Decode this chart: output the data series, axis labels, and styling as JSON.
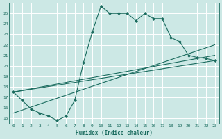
{
  "xlabel": "Humidex (Indice chaleur)",
  "ylabel": "",
  "bg_color": "#cce8e5",
  "line_color": "#1a6b5e",
  "marker_color": "#1a6b5e",
  "xlim": [
    -0.5,
    23.5
  ],
  "ylim": [
    14.5,
    26.0
  ],
  "xticks": [
    0,
    1,
    2,
    3,
    4,
    5,
    6,
    7,
    8,
    9,
    10,
    11,
    12,
    13,
    14,
    15,
    16,
    17,
    18,
    19,
    20,
    21,
    22,
    23
  ],
  "yticks": [
    15,
    16,
    17,
    18,
    19,
    20,
    21,
    22,
    23,
    24,
    25
  ],
  "lines": [
    {
      "x": [
        0,
        1,
        2,
        3,
        4,
        5,
        6,
        7,
        8,
        9,
        10,
        11,
        12,
        13,
        14,
        15,
        16,
        17,
        18,
        19,
        20,
        21,
        22,
        23
      ],
      "y": [
        17.5,
        16.7,
        15.9,
        15.5,
        15.2,
        14.8,
        15.2,
        16.7,
        20.3,
        23.2,
        25.7,
        25.0,
        25.0,
        25.0,
        24.3,
        25.0,
        24.5,
        24.5,
        22.7,
        22.3,
        21.0,
        20.8,
        20.7,
        20.5
      ],
      "has_markers": true
    },
    {
      "x": [
        0,
        23
      ],
      "y": [
        17.5,
        20.5
      ],
      "has_markers": false
    },
    {
      "x": [
        0,
        23
      ],
      "y": [
        15.5,
        22.0
      ],
      "has_markers": false
    },
    {
      "x": [
        0,
        23
      ],
      "y": [
        17.5,
        21.0
      ],
      "has_markers": false
    }
  ]
}
